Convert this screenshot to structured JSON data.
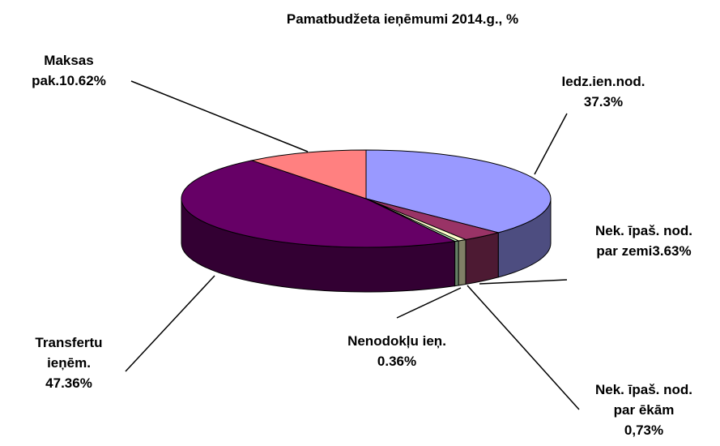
{
  "chart_data": {
    "type": "pie",
    "title": "Pamatbudžeta ieņēmumi 2014.g., %",
    "categories": [
      "Iedz.ien.nod.",
      "Nek. īpaš. nod. par zemi",
      "Nek. īpaš. nod. par ēkām",
      "Nenodokļu ieņ.",
      "Transfertu ieņēm.",
      "Maksas pak."
    ],
    "values": [
      37.3,
      3.63,
      0.73,
      0.36,
      47.36,
      10.62
    ],
    "value_labels": [
      "37.3%",
      "3.63%",
      "0,73%",
      "0.36%",
      "47.36%",
      "10.62%"
    ],
    "colors": [
      "#9999ff",
      "#993366",
      "#ffffcc",
      "#ccffcc",
      "#660066",
      "#ff8080"
    ],
    "three_d": true
  }
}
